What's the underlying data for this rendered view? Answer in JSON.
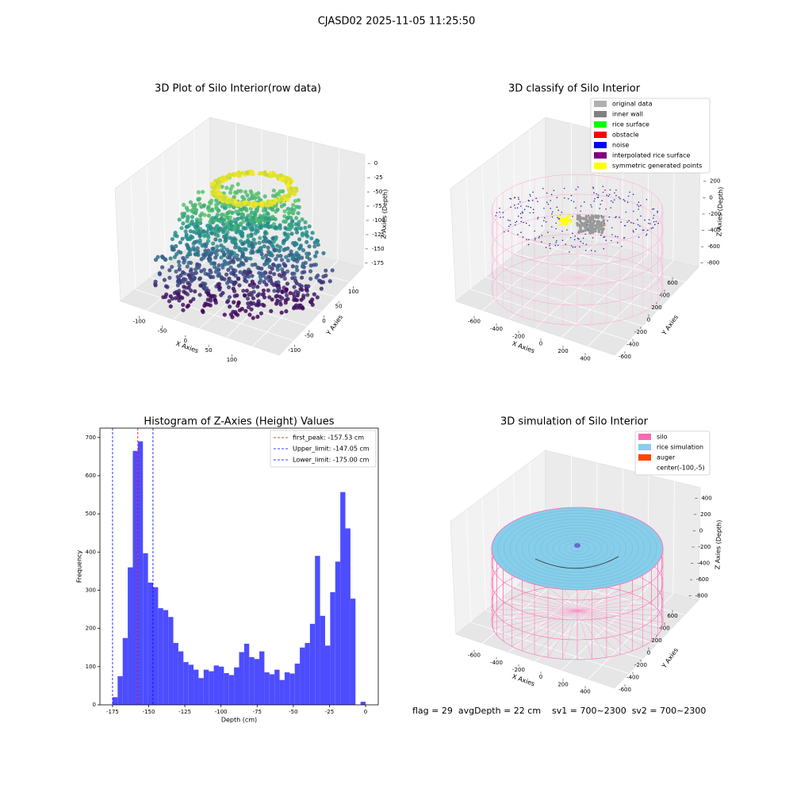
{
  "title": "CJASD02 2025-11-05 11:25:50",
  "chart_data": [
    {
      "type": "scatter3d",
      "title": "3D Plot of Silo Interior(row data)",
      "xlabel": "X Axies",
      "ylabel": "Y Axies",
      "zlabel": "Z Axies (Depth)",
      "xlim": [
        -140,
        125
      ],
      "xticks": [
        -100,
        -50,
        0,
        50,
        100
      ],
      "ylim": [
        -125,
        125
      ],
      "yticks": [
        -100,
        -50,
        0,
        50,
        100
      ],
      "zlim": [
        -185,
        10
      ],
      "zticks": [
        -175,
        -150,
        -125,
        -100,
        -75,
        -50,
        -25,
        0
      ]
    },
    {
      "type": "classify3d",
      "title": "3D classify of Silo Interior",
      "xlabel": "X Axies",
      "ylabel": "Y Axies",
      "zlabel": "Z Axies (Depth)",
      "xlim": [
        -700,
        500
      ],
      "xticks": [
        -600,
        -400,
        -200,
        0,
        200,
        400
      ],
      "ylim": [
        -700,
        700
      ],
      "yticks": [
        -600,
        -400,
        -200,
        0,
        200,
        400,
        600
      ],
      "zlim": [
        -900,
        450
      ],
      "zticks": [
        -800,
        -600,
        -400,
        -200,
        0,
        200
      ],
      "legend": [
        {
          "name": "original data",
          "color": "#b0b0b0"
        },
        {
          "name": "inner wall",
          "color": "#808080"
        },
        {
          "name": "rice surface",
          "color": "#00ff00"
        },
        {
          "name": "obstacle",
          "color": "#ff0000"
        },
        {
          "name": "noise",
          "color": "#0000ff"
        },
        {
          "name": "interpolated rice surface",
          "color": "#800080"
        },
        {
          "name": "symmetric generated points",
          "color": "#ffff00"
        }
      ]
    },
    {
      "type": "histogram",
      "title": "Histogram of Z-Axies (Height) Values",
      "xlabel": "Depth (cm)",
      "ylabel": "Frequency",
      "color": "#4d4dff",
      "bins": [
        -175,
        -171.5,
        -168,
        -164.5,
        -161,
        -157.5,
        -154,
        -150.5,
        -147,
        -143.5,
        -140,
        -136.5,
        -133,
        -129.5,
        -126,
        -122.5,
        -119,
        -115.5,
        -112,
        -108.5,
        -105,
        -101.5,
        -98,
        -94.5,
        -91,
        -87.5,
        -84,
        -80.5,
        -77,
        -73.5,
        -70,
        -66.5,
        -63,
        -59.5,
        -56,
        -52.5,
        -49,
        -45.5,
        -42,
        -38.5,
        -35,
        -31.5,
        -28,
        -24.5,
        -21,
        -17.5,
        -14,
        -10.5,
        -7,
        -3.5,
        0
      ],
      "values": [
        20,
        75,
        175,
        360,
        665,
        690,
        397,
        320,
        308,
        253,
        248,
        230,
        162,
        140,
        112,
        105,
        92,
        70,
        92,
        88,
        103,
        100,
        83,
        78,
        98,
        138,
        160,
        125,
        120,
        140,
        85,
        80,
        92,
        65,
        85,
        82,
        108,
        150,
        162,
        212,
        390,
        233,
        155,
        295,
        375,
        557,
        462,
        278,
        0,
        8
      ],
      "xlim": [
        -183.75,
        8.75
      ],
      "xticks": [
        -175,
        -150,
        -125,
        -100,
        -75,
        -50,
        -25,
        0
      ],
      "ylim": [
        0,
        724.5
      ],
      "yticks": [
        0,
        100,
        200,
        300,
        400,
        500,
        600,
        700
      ],
      "lines": [
        {
          "value": -157.53,
          "label": "first_peak: -157.53 cm",
          "color": "#ff0000"
        },
        {
          "value": -147.05,
          "label": "Upper_limit: -147.05 cm",
          "color": "#0000ff"
        },
        {
          "value": -175.0,
          "label": "Lower_limit: -175.00 cm",
          "color": "#0000ff"
        }
      ],
      "legend_loc": "upper right"
    },
    {
      "type": "simulation3d",
      "title": "3D simulation of Silo Interior",
      "xlabel": "X Axies",
      "ylabel": "Y Axies",
      "zlabel": "Z Axies (Depth)",
      "xlim": [
        -700,
        500
      ],
      "xticks": [
        -600,
        -400,
        -200,
        0,
        200,
        400
      ],
      "ylim": [
        -700,
        700
      ],
      "yticks": [
        -600,
        -400,
        -200,
        0,
        200,
        400,
        600
      ],
      "zlim": [
        -900,
        500
      ],
      "zticks": [
        -800,
        -600,
        -400,
        -200,
        0,
        200,
        400
      ],
      "legend": [
        {
          "name": "silo",
          "color": "#ff69b4"
        },
        {
          "name": "rice simulation",
          "color": "#87ceeb"
        },
        {
          "name": "auger",
          "color": "#ff4500"
        },
        {
          "name": "center(-100,-5)",
          "color": "#ffffff"
        }
      ]
    }
  ],
  "footer": "flag = 29  avgDepth = 22 cm    sv1 = 700~2300  sv2 = 700~2300"
}
